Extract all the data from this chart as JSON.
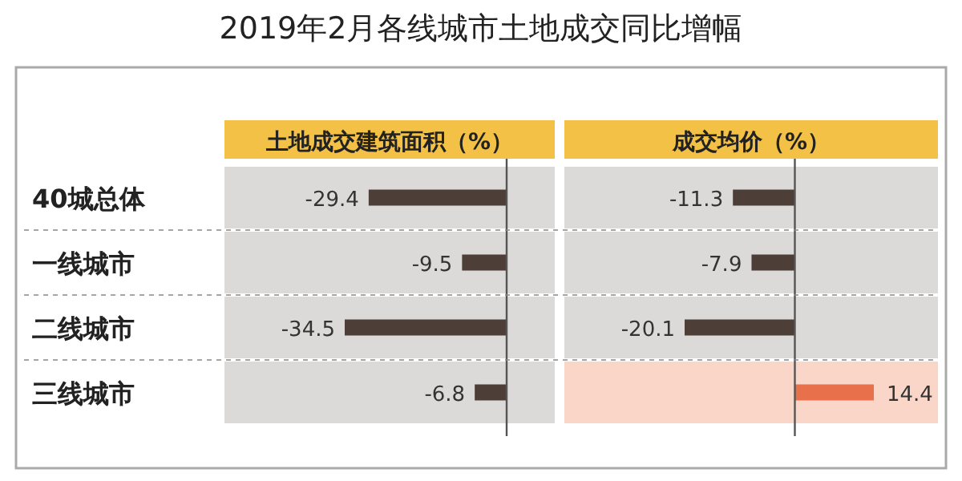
{
  "chart_data": [
    {
      "type": "bar",
      "orientation": "horizontal",
      "title": "2019年2月各线城市土地成交同比增幅",
      "subtitle": "土地成交建筑面积（%）",
      "categories": [
        "40城总体",
        "一线城市",
        "二线城市",
        "三线城市"
      ],
      "values": [
        -29.4,
        -9.5,
        -34.5,
        -6.8
      ],
      "colors": [
        "#4d3f37",
        "#4d3f37",
        "#4d3f37",
        "#4d3f37"
      ],
      "data_labels": true
    },
    {
      "type": "bar",
      "orientation": "horizontal",
      "subtitle": "成交均价（%）",
      "categories": [
        "40城总体",
        "一线城市",
        "二线城市",
        "三线城市"
      ],
      "values": [
        -11.3,
        -7.9,
        -20.1,
        14.4
      ],
      "colors": [
        "#4d3f37",
        "#4d3f37",
        "#4d3f37",
        "#e8704a"
      ],
      "data_labels": true,
      "tick_labels": false,
      "bands": [
        {
          "axis": "y",
          "from": "三线城市",
          "to": "三线城市",
          "color": "#fad6c8"
        }
      ]
    }
  ]
}
